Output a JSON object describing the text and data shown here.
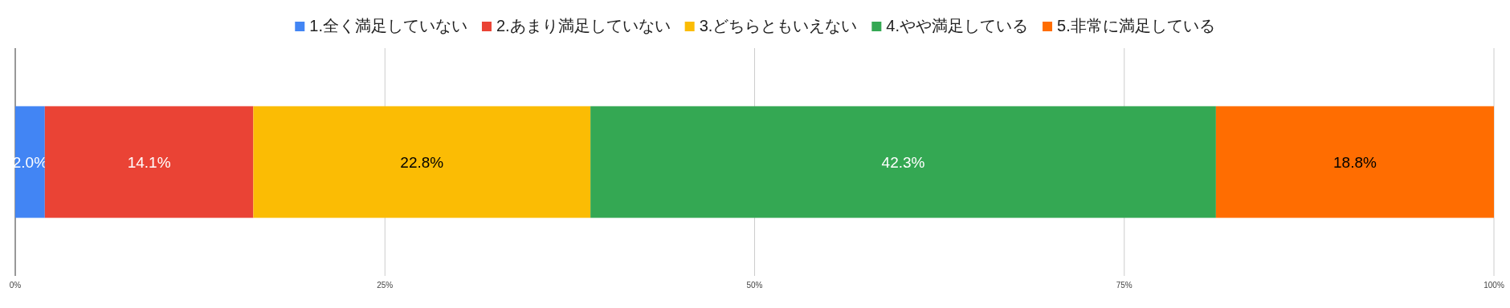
{
  "chart_data": {
    "type": "bar",
    "orientation": "horizontal",
    "stacked": true,
    "categories": [
      null
    ],
    "series": [
      {
        "name": "1.全く満足していない",
        "color": "#4285f4",
        "values": [
          2.0
        ],
        "value_labels": [
          "2.0%"
        ]
      },
      {
        "name": "2.あまり満足していない",
        "color": "#ea4335",
        "values": [
          14.1
        ],
        "value_labels": [
          "14.1%"
        ]
      },
      {
        "name": "3.どちらともいえない",
        "color": "#fbbc04",
        "values": [
          22.8
        ],
        "value_labels": [
          "22.8%"
        ]
      },
      {
        "name": "4.やや満足している",
        "color": "#34a853",
        "values": [
          42.3
        ],
        "value_labels": [
          "42.3%"
        ]
      },
      {
        "name": "5.非常に満足している",
        "color": "#ff6d01",
        "values": [
          18.8
        ],
        "value_labels": [
          "18.8%"
        ]
      }
    ],
    "xlim": [
      0,
      100
    ],
    "xticks": [
      {
        "value": 0,
        "label": "0%"
      },
      {
        "value": 25,
        "label": "25%"
      },
      {
        "value": 50,
        "label": "50%"
      },
      {
        "value": 75,
        "label": "75%"
      },
      {
        "value": 100,
        "label": "100%"
      }
    ],
    "grid": "x",
    "legend": "top",
    "tick_labels": "x"
  }
}
